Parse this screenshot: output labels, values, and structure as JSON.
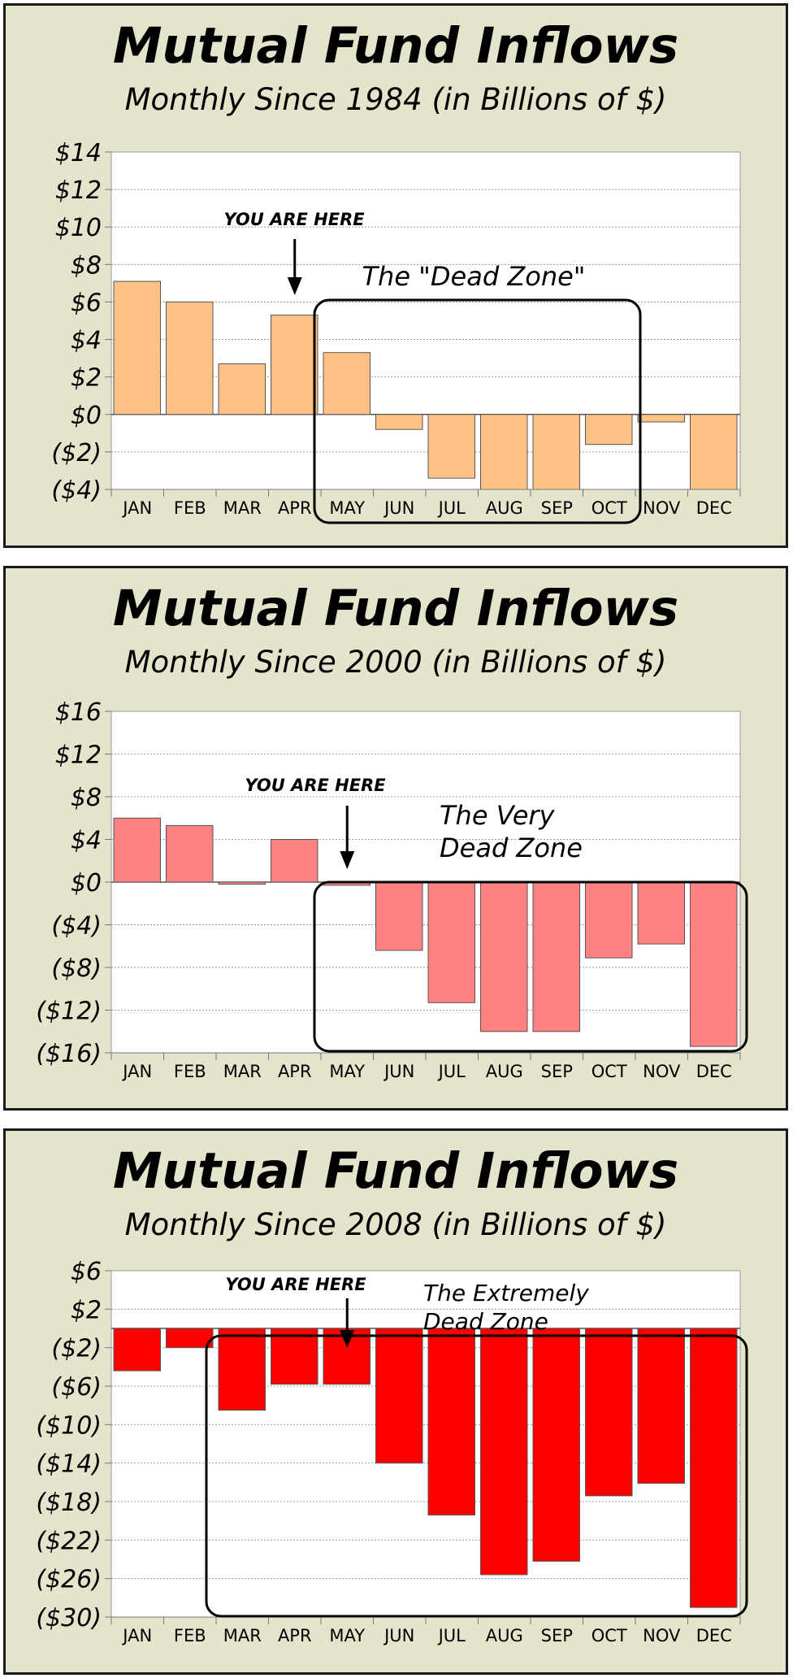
{
  "chart_data": [
    {
      "type": "bar",
      "title": "Mutual Fund Inflows",
      "subtitle": "Monthly Since 1984 (in Billions of $)",
      "categories": [
        "JAN",
        "FEB",
        "MAR",
        "APR",
        "MAY",
        "JUN",
        "JUL",
        "AUG",
        "SEP",
        "OCT",
        "NOV",
        "DEC"
      ],
      "values": [
        7.1,
        6.0,
        2.7,
        5.3,
        3.3,
        -0.8,
        -3.4,
        -4.0,
        -4.0,
        -1.6,
        -0.4,
        -4.0
      ],
      "ylim": [
        -4,
        14
      ],
      "yticks": [
        14,
        12,
        10,
        8,
        6,
        4,
        2,
        0,
        -2,
        -4
      ],
      "ytick_labels": [
        "$14",
        "$12",
        "$10",
        "$8",
        "$6",
        "$4",
        "$2",
        "$0",
        "($2)",
        "($4)"
      ],
      "bar_color": "#fdc283",
      "grid": true,
      "annotations": {
        "marker_text": "YOU ARE HERE",
        "zone_lines": [
          "The \"Dead Zone\""
        ],
        "marker_month": "APR",
        "zone_months": [
          "MAY",
          "OCT"
        ]
      }
    },
    {
      "type": "bar",
      "title": "Mutual Fund Inflows",
      "subtitle": "Monthly Since 2000 (in Billions of $)",
      "categories": [
        "JAN",
        "FEB",
        "MAR",
        "APR",
        "MAY",
        "JUN",
        "JUL",
        "AUG",
        "SEP",
        "OCT",
        "NOV",
        "DEC"
      ],
      "values": [
        6.0,
        5.3,
        -0.2,
        4.0,
        -0.3,
        -6.4,
        -11.3,
        -14.0,
        -14.0,
        -7.1,
        -5.8,
        -15.4
      ],
      "ylim": [
        -16,
        16
      ],
      "yticks": [
        16,
        12,
        8,
        4,
        0,
        -4,
        -8,
        -12,
        -16
      ],
      "ytick_labels": [
        "$16",
        "$12",
        "$8",
        "$4",
        "$0",
        "($4)",
        "($8)",
        "($12)",
        "($16)"
      ],
      "bar_color": "#ff8282",
      "grid": true,
      "annotations": {
        "marker_text": "YOU ARE HERE",
        "zone_lines": [
          "The Very",
          "Dead Zone"
        ],
        "marker_month": "MAY",
        "zone_months": [
          "MAY",
          "DEC"
        ]
      }
    },
    {
      "type": "bar",
      "title": "Mutual Fund Inflows",
      "subtitle": "Monthly Since 2008 (in Billions of $)",
      "categories": [
        "JAN",
        "FEB",
        "MAR",
        "APR",
        "MAY",
        "JUN",
        "JUL",
        "AUG",
        "SEP",
        "OCT",
        "NOV",
        "DEC"
      ],
      "values": [
        -4.4,
        -2.0,
        -8.5,
        -5.8,
        -5.8,
        -14.0,
        -19.4,
        -25.6,
        -24.2,
        -17.4,
        -16.1,
        -29.0
      ],
      "ylim": [
        -30,
        6
      ],
      "yticks": [
        6,
        2,
        -2,
        -6,
        -10,
        -14,
        -18,
        -22,
        -26,
        -30
      ],
      "ytick_labels": [
        "$6",
        "$2",
        "($2)",
        "($6)",
        "($10)",
        "($14)",
        "($18)",
        "($22)",
        "($26)",
        "($30)"
      ],
      "bar_color": "#ff0000",
      "grid": true,
      "annotations": {
        "marker_text": "YOU ARE HERE",
        "zone_lines": [
          "The Extremely",
          "Dead Zone"
        ],
        "marker_month": "MAY",
        "zone_months": [
          "MAR",
          "DEC"
        ]
      }
    }
  ]
}
